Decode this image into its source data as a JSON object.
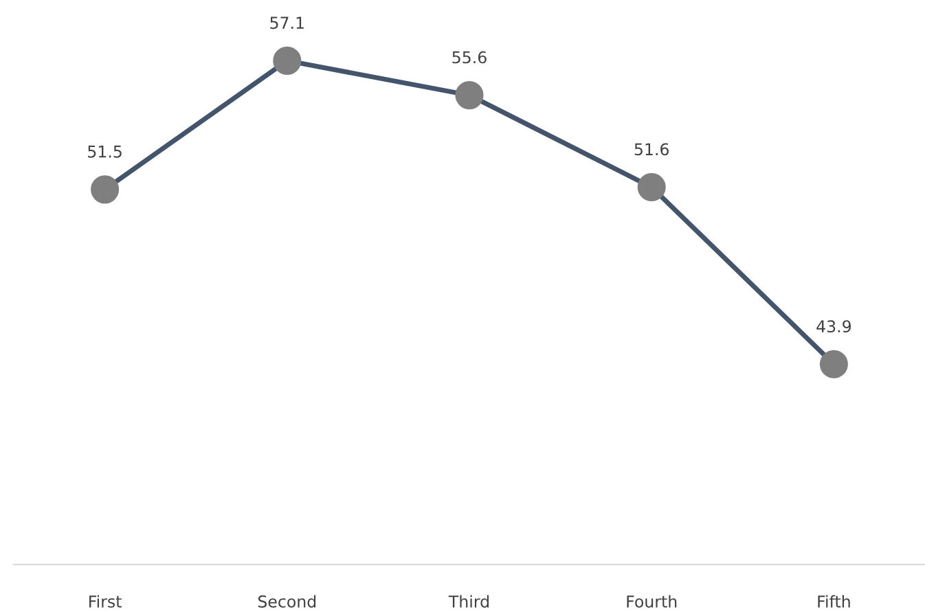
{
  "chart_data": {
    "type": "line",
    "categories": [
      "First",
      "Second",
      "Third",
      "Fourth",
      "Fifth"
    ],
    "series": [
      {
        "color": "#44546a",
        "colors": [
          "#7f7f7f",
          "#7f7f7f",
          "#7f7f7f",
          "#7f7f7f",
          "#7f7f7f"
        ],
        "values": [
          51.5,
          57.1,
          55.6,
          51.6,
          43.9
        ]
      }
    ],
    "marker": "circle",
    "tick_labels": "x",
    "data_labels": true,
    "grid": false,
    "legend": false
  }
}
